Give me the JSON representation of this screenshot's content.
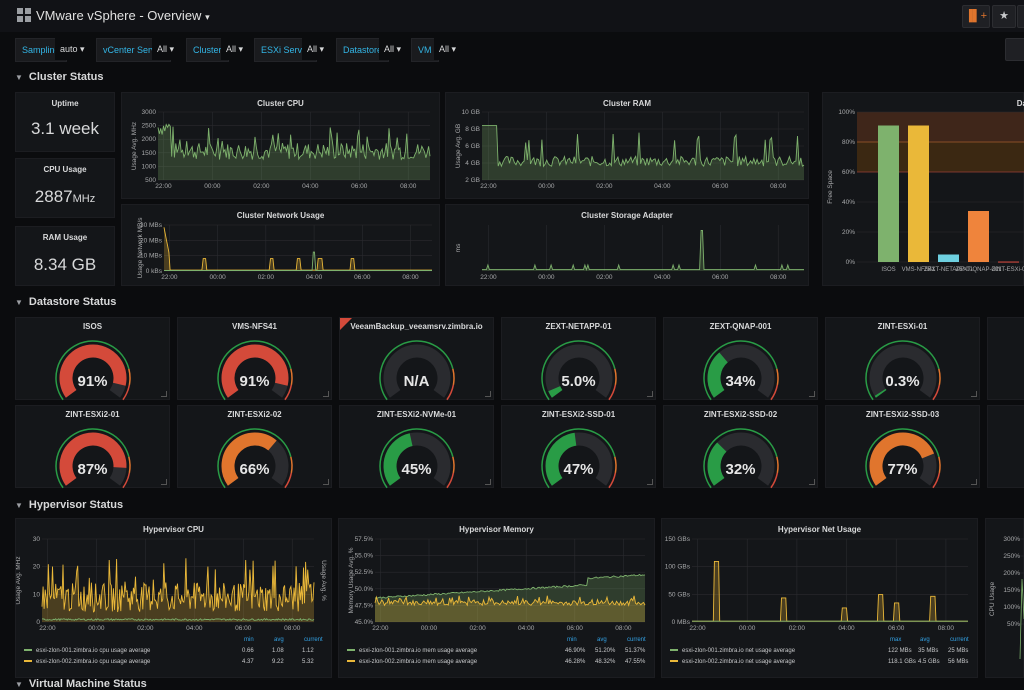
{
  "header": {
    "title": "VMware vSphere - Overview",
    "caret": "▾"
  },
  "toolbar": {
    "star": "★",
    "chart_add": "▐▌+"
  },
  "variables": [
    {
      "label": "Sampling",
      "value": "auto"
    },
    {
      "label": "vCenter Server",
      "value": "All"
    },
    {
      "label": "Cluster",
      "value": "All"
    },
    {
      "label": "ESXi Server",
      "value": "All"
    },
    {
      "label": "Datastore",
      "value": "All"
    },
    {
      "label": "VM",
      "value": "All"
    }
  ],
  "sections": {
    "cluster": "Cluster Status",
    "datastore": "Datastore Status",
    "hypervisor": "Hypervisor Status",
    "vm": "Virtual Machine Status"
  },
  "stats": [
    {
      "title": "Uptime",
      "value": "3.1 week",
      "unit": ""
    },
    {
      "title": "CPU Usage",
      "value": "2887",
      "unit": "MHz"
    },
    {
      "title": "RAM Usage",
      "value": "8.34 GB",
      "unit": ""
    }
  ],
  "cluster_charts": {
    "cpu": {
      "title": "Cluster CPU",
      "ylabel": "Usage Avg. MHz",
      "yticks": [
        "3000",
        "2500",
        "2000",
        "1500",
        "1000",
        "500"
      ],
      "xticks": [
        "22:00",
        "00:00",
        "02:00",
        "04:00",
        "06:00",
        "08:00"
      ]
    },
    "ram": {
      "title": "Cluster RAM",
      "ylabel": "Usage Avg. GB",
      "yticks": [
        "10 GB",
        "8 GB",
        "6 GB",
        "4 GB",
        "2 GB"
      ],
      "xticks": [
        "22:00",
        "00:00",
        "02:00",
        "04:00",
        "06:00",
        "08:00"
      ]
    },
    "net": {
      "title": "Cluster Network Usage",
      "ylabel": "Usage Network MB/s",
      "yticks": [
        "30 MBs",
        "20 MBs",
        "10 MBs",
        "0 kBs"
      ],
      "xticks": [
        "22:00",
        "00:00",
        "02:00",
        "04:00",
        "06:00",
        "08:00"
      ]
    },
    "storage": {
      "title": "Cluster Storage Adapter",
      "ylabel": "ms",
      "yticks": [],
      "xticks": [
        "22:00",
        "00:00",
        "02:00",
        "04:00",
        "06:00",
        "08:00"
      ]
    }
  },
  "chart_data": [
    {
      "type": "bar",
      "title": "Da",
      "ylabel": "Free Space",
      "categories": [
        "ISOS",
        "VMS-NFS41",
        "ZEXT-NETAPP-01",
        "ZEXT-QNAP-001",
        "ZINT-ESXi-0"
      ],
      "values": [
        91,
        91,
        5,
        34,
        0.3
      ],
      "yticks": [
        "100%",
        "80%",
        "60%",
        "40%",
        "20%",
        "0%"
      ],
      "ylim": [
        0,
        100
      ],
      "colors": [
        "#7eb26d",
        "#eab839",
        "#6ed0e0",
        "#ef843c",
        "#e24d42"
      ]
    }
  ],
  "datastores": [
    {
      "name": "ISOS",
      "value": "91%",
      "pct": 91,
      "color": "#d44a3a"
    },
    {
      "name": "VMS-NFS41",
      "value": "91%",
      "pct": 91,
      "color": "#d44a3a"
    },
    {
      "name": "VeeamBackup_veeamsrv.zimbra.io",
      "value": "N/A",
      "pct": 0,
      "color": "#299c46"
    },
    {
      "name": "ZEXT-NETAPP-01",
      "value": "5.0%",
      "pct": 5,
      "color": "#299c46"
    },
    {
      "name": "ZEXT-QNAP-001",
      "value": "34%",
      "pct": 34,
      "color": "#299c46"
    },
    {
      "name": "ZINT-ESXi-01",
      "value": "0.3%",
      "pct": 0.3,
      "color": "#299c46"
    },
    {
      "name": "ZINT-ESXi2-01",
      "value": "87%",
      "pct": 87,
      "color": "#d44a3a"
    },
    {
      "name": "ZINT-ESXi2-02",
      "value": "66%",
      "pct": 66,
      "color": "#e0752d"
    },
    {
      "name": "ZINT-ESXi2-NVMe-01",
      "value": "45%",
      "pct": 45,
      "color": "#299c46"
    },
    {
      "name": "ZINT-ESXi2-SSD-01",
      "value": "47%",
      "pct": 47,
      "color": "#299c46"
    },
    {
      "name": "ZINT-ESXi2-SSD-02",
      "value": "32%",
      "pct": 32,
      "color": "#299c46"
    },
    {
      "name": "ZINT-ESXi2-SSD-03",
      "value": "77%",
      "pct": 77,
      "color": "#e0752d"
    }
  ],
  "hypervisor": {
    "cpu": {
      "title": "Hypervisor CPU",
      "ylabel": "Usage Avg. MHz",
      "ylabel2": "Usage Avg. %",
      "yticks": [
        "30",
        "20",
        "10",
        "0"
      ],
      "xticks": [
        "22:00",
        "00:00",
        "02:00",
        "04:00",
        "06:00",
        "08:00"
      ],
      "legend_hdr": [
        "min",
        "avg",
        "current"
      ],
      "rows": [
        {
          "name": "esxi-zlon-001.zimbra.io cpu usage average",
          "min": "0.66",
          "avg": "1.08",
          "current": "1.12",
          "color": "#7eb26d"
        },
        {
          "name": "esxi-zlon-002.zimbra.io cpu usage average",
          "min": "4.37",
          "avg": "9.22",
          "current": "5.32",
          "color": "#eab839"
        }
      ]
    },
    "mem": {
      "title": "Hypervisor Memory",
      "ylabel": "Memory Usage Avg. %",
      "yticks": [
        "57.5%",
        "55.0%",
        "52.5%",
        "50.0%",
        "47.5%",
        "45.0%"
      ],
      "xticks": [
        "22:00",
        "00:00",
        "02:00",
        "04:00",
        "06:00",
        "08:00"
      ],
      "legend_hdr": [
        "min",
        "avg",
        "current"
      ],
      "rows": [
        {
          "name": "esxi-zlon-001.zimbra.io mem usage average",
          "min": "46.90%",
          "avg": "51.20%",
          "current": "51.37%",
          "color": "#7eb26d"
        },
        {
          "name": "esxi-zlon-002.zimbra.io mem usage average",
          "min": "46.28%",
          "avg": "48.32%",
          "current": "47.55%",
          "color": "#eab839"
        }
      ]
    },
    "net": {
      "title": "Hypervisor Net Usage",
      "yticks": [
        "150 GBs",
        "100 GBs",
        "50 GBs",
        "0 MBs"
      ],
      "xticks": [
        "22:00",
        "00:00",
        "02:00",
        "04:00",
        "06:00",
        "08:00"
      ],
      "legend_hdr": [
        "max",
        "avg",
        "current"
      ],
      "rows": [
        {
          "name": "esxi-zlon-001.zimbra.io net usage average",
          "min": "122 MBs",
          "avg": "35 MBs",
          "current": "25 MBs",
          "color": "#7eb26d"
        },
        {
          "name": "esxi-zlon-002.zimbra.io net usage average",
          "min": "118.1 GBs",
          "avg": "4.5 GBs",
          "current": "56 MBs",
          "color": "#eab839"
        }
      ]
    },
    "fourth": {
      "ylabel": "CPU Usage",
      "yticks": [
        "300%",
        "250%",
        "200%",
        "150%",
        "100%",
        "50%"
      ]
    }
  },
  "colors": {
    "green": "#7eb26d",
    "yellow": "#eab839",
    "blue": "#33b5e5",
    "red": "#d44a3a",
    "orange": "#e0752d"
  }
}
